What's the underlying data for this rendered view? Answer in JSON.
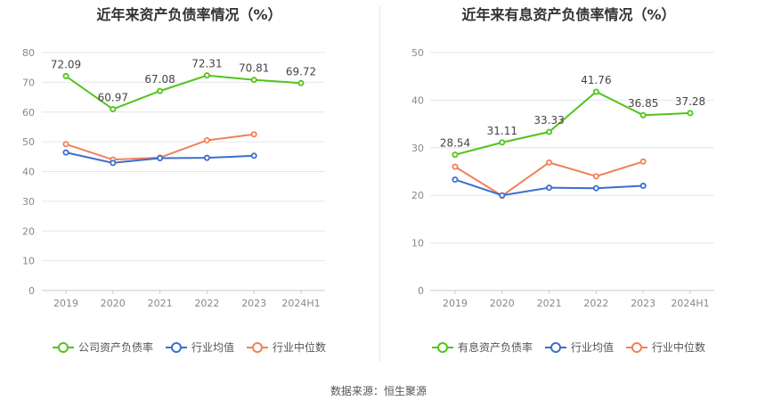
{
  "colors": {
    "green": "#52c41a",
    "blue": "#3a6fd0",
    "orange": "#f08058",
    "grid": "#e4e6ee",
    "axis_text": "#888888",
    "label_text": "#444444"
  },
  "source_text": "数据来源：恒生聚源",
  "chart_data": [
    {
      "type": "line",
      "title": "近年来资产负债率情况（%）",
      "categories": [
        "2019",
        "2020",
        "2021",
        "2022",
        "2023",
        "2024H1"
      ],
      "ylim": [
        0,
        80
      ],
      "yticks": [
        "0",
        "10",
        "20",
        "30",
        "40",
        "50",
        "60",
        "70",
        "80"
      ],
      "grid": true,
      "legend_position": "bottom",
      "series": [
        {
          "name": "公司资产负债率",
          "color": "#52c41a",
          "labeled": true,
          "values": [
            72.09,
            60.97,
            67.08,
            72.31,
            70.81,
            69.72
          ],
          "labels": [
            "72.09",
            "60.97",
            "67.08",
            "72.31",
            "70.81",
            "69.72"
          ]
        },
        {
          "name": "行业均值",
          "color": "#3a6fd0",
          "labeled": false,
          "values": [
            46.4,
            42.9,
            44.5,
            44.6,
            45.3,
            null
          ]
        },
        {
          "name": "行业中位数",
          "color": "#f08058",
          "labeled": false,
          "values": [
            49.2,
            44.0,
            44.7,
            50.5,
            52.5,
            null
          ]
        }
      ]
    },
    {
      "type": "line",
      "title": "近年来有息资产负债率情况（%）",
      "categories": [
        "2019",
        "2020",
        "2021",
        "2022",
        "2023",
        "2024H1"
      ],
      "ylim": [
        0,
        50
      ],
      "yticks": [
        "0",
        "10",
        "20",
        "30",
        "40",
        "50"
      ],
      "grid": true,
      "legend_position": "bottom",
      "series": [
        {
          "name": "有息资产负债率",
          "color": "#52c41a",
          "labeled": true,
          "values": [
            28.54,
            31.11,
            33.33,
            41.76,
            36.85,
            37.28
          ],
          "labels": [
            "28.54",
            "31.11",
            "33.33",
            "41.76",
            "36.85",
            "37.28"
          ]
        },
        {
          "name": "行业均值",
          "color": "#3a6fd0",
          "labeled": false,
          "values": [
            23.3,
            20.0,
            21.6,
            21.5,
            22.0,
            null
          ]
        },
        {
          "name": "行业中位数",
          "color": "#f08058",
          "labeled": false,
          "values": [
            26.0,
            19.9,
            26.9,
            24.0,
            27.1,
            null
          ]
        }
      ]
    }
  ]
}
